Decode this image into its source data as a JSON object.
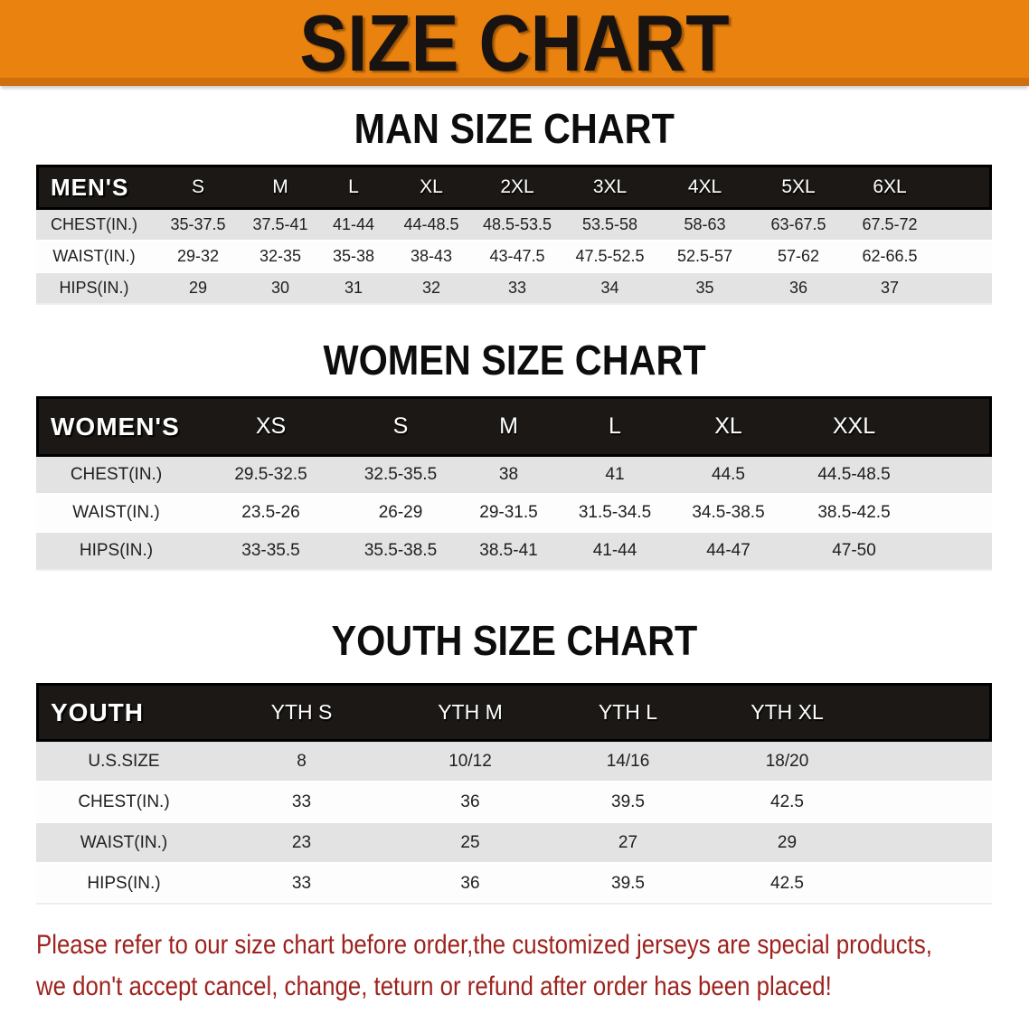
{
  "banner": {
    "title": "SIZE CHART",
    "bg_color": "#E9820F",
    "border_color": "#CF6F10",
    "text_color": "#181310"
  },
  "sections": [
    {
      "id": "men",
      "heading": "MAN SIZE CHART",
      "table": {
        "group_label": "MEN'S",
        "columns": [
          "S",
          "M",
          "L",
          "XL",
          "2XL",
          "3XL",
          "4XL",
          "5XL",
          "6XL"
        ],
        "rows": [
          {
            "label": "CHEST(IN.)",
            "values": [
              "35-37.5",
              "37.5-41",
              "41-44",
              "44-48.5",
              "48.5-53.5",
              "53.5-58",
              "58-63",
              "63-67.5",
              "67.5-72"
            ]
          },
          {
            "label": "WAIST(IN.)",
            "values": [
              "29-32",
              "32-35",
              "35-38",
              "38-43",
              "43-47.5",
              "47.5-52.5",
              "52.5-57",
              "57-62",
              "62-66.5"
            ]
          },
          {
            "label": "HIPS(IN.)",
            "values": [
              "29",
              "30",
              "31",
              "32",
              "33",
              "34",
              "35",
              "36",
              "37"
            ]
          }
        ]
      }
    },
    {
      "id": "women",
      "heading": "WOMEN SIZE CHART",
      "table": {
        "group_label": "WOMEN'S",
        "columns": [
          "XS",
          "S",
          "M",
          "L",
          "XL",
          "XXL"
        ],
        "rows": [
          {
            "label": "CHEST(IN.)",
            "values": [
              "29.5-32.5",
              "32.5-35.5",
              "38",
              "41",
              "44.5",
              "44.5-48.5"
            ]
          },
          {
            "label": "WAIST(IN.)",
            "values": [
              "23.5-26",
              "26-29",
              "29-31.5",
              "31.5-34.5",
              "34.5-38.5",
              "38.5-42.5"
            ]
          },
          {
            "label": "HIPS(IN.)",
            "values": [
              "33-35.5",
              "35.5-38.5",
              "38.5-41",
              "41-44",
              "44-47",
              "47-50"
            ]
          }
        ]
      }
    },
    {
      "id": "youth",
      "heading": "YOUTH SIZE CHART",
      "table": {
        "group_label": "YOUTH",
        "columns": [
          "YTH S",
          "YTH M",
          "YTH L",
          "YTH XL"
        ],
        "rows": [
          {
            "label": "U.S.SIZE",
            "values": [
              "8",
              "10/12",
              "14/16",
              "18/20"
            ]
          },
          {
            "label": "CHEST(IN.)",
            "values": [
              "33",
              "36",
              "39.5",
              "42.5"
            ]
          },
          {
            "label": "WAIST(IN.)",
            "values": [
              "23",
              "25",
              "27",
              "29"
            ]
          },
          {
            "label": "HIPS(IN.)",
            "values": [
              "33",
              "36",
              "39.5",
              "42.5"
            ]
          }
        ]
      }
    }
  ],
  "disclaimer": {
    "color": "#9E221D",
    "lines": [
      "Please refer to our size chart before order,the customized jerseys are special products,",
      "we don't accept cancel, change, teturn or refund after order has been placed!"
    ]
  }
}
